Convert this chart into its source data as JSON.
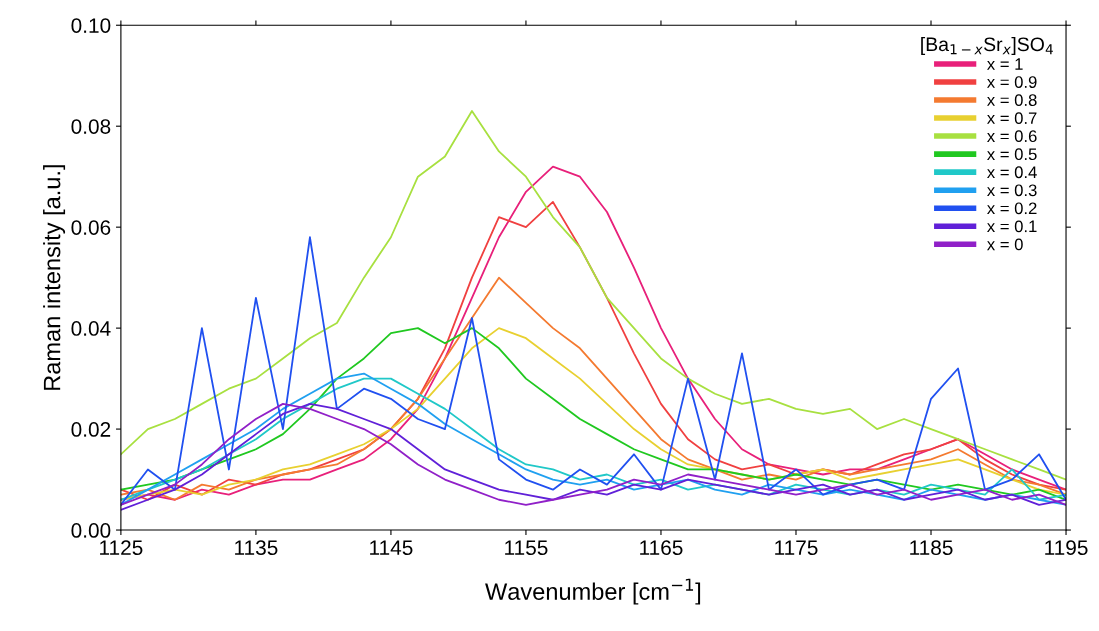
{
  "chart_data": {
    "type": "line",
    "xlabel": "Wavenumber [cm$^{−1}$]",
    "ylabel": "Raman intensity [a.u.]",
    "legend_title": "[Ba$_{1−x}$Sr$_{x}$]SO$_{4}$",
    "legend": "top right",
    "grid": false,
    "x": [
      1125,
      1127,
      1129,
      1131,
      1133,
      1135,
      1137,
      1139,
      1141,
      1143,
      1145,
      1147,
      1149,
      1151,
      1153,
      1155,
      1157,
      1159,
      1161,
      1163,
      1165,
      1167,
      1169,
      1171,
      1173,
      1175,
      1177,
      1179,
      1181,
      1183,
      1185,
      1187,
      1189,
      1191,
      1193,
      1195
    ],
    "xlim": [
      1125,
      1195
    ],
    "xticks": [
      1125,
      1135,
      1145,
      1155,
      1165,
      1175,
      1185,
      1195
    ],
    "ylim": [
      0,
      0.1
    ],
    "yticks": [
      {
        "value": 0,
        "label": "0.00"
      },
      {
        "value": 0.02,
        "label": "0.02"
      },
      {
        "value": 0.04,
        "label": "0.04"
      },
      {
        "value": 0.06,
        "label": "0.06"
      },
      {
        "value": 0.08,
        "label": "0.08"
      },
      {
        "value": 0.1,
        "label": "0.10"
      }
    ],
    "series": [
      {
        "name": "x = 1",
        "color": "#e8207a",
        "values": [
          0.006,
          0.007,
          0.006,
          0.008,
          0.007,
          0.009,
          0.01,
          0.01,
          0.012,
          0.014,
          0.018,
          0.024,
          0.034,
          0.046,
          0.058,
          0.067,
          0.072,
          0.07,
          0.063,
          0.052,
          0.04,
          0.03,
          0.022,
          0.016,
          0.013,
          0.012,
          0.011,
          0.012,
          0.012,
          0.014,
          0.016,
          0.018,
          0.015,
          0.012,
          0.01,
          0.008
        ]
      },
      {
        "name": "x = 0.9",
        "color": "#f04040",
        "values": [
          0.008,
          0.006,
          0.009,
          0.007,
          0.01,
          0.009,
          0.011,
          0.012,
          0.014,
          0.016,
          0.02,
          0.026,
          0.036,
          0.05,
          0.062,
          0.06,
          0.065,
          0.056,
          0.046,
          0.035,
          0.025,
          0.018,
          0.014,
          0.012,
          0.013,
          0.011,
          0.012,
          0.011,
          0.013,
          0.015,
          0.016,
          0.018,
          0.014,
          0.011,
          0.009,
          0.008
        ]
      },
      {
        "name": "x = 0.8",
        "color": "#f47a30",
        "values": [
          0.007,
          0.008,
          0.006,
          0.009,
          0.008,
          0.01,
          0.011,
          0.012,
          0.013,
          0.016,
          0.02,
          0.026,
          0.034,
          0.042,
          0.05,
          0.045,
          0.04,
          0.036,
          0.03,
          0.024,
          0.018,
          0.014,
          0.012,
          0.01,
          0.011,
          0.01,
          0.012,
          0.011,
          0.012,
          0.013,
          0.014,
          0.016,
          0.013,
          0.01,
          0.009,
          0.007
        ]
      },
      {
        "name": "x = 0.7",
        "color": "#e8d030",
        "values": [
          0.006,
          0.007,
          0.008,
          0.007,
          0.009,
          0.01,
          0.012,
          0.013,
          0.015,
          0.017,
          0.02,
          0.024,
          0.03,
          0.036,
          0.04,
          0.038,
          0.034,
          0.03,
          0.025,
          0.02,
          0.016,
          0.013,
          0.012,
          0.011,
          0.01,
          0.011,
          0.012,
          0.01,
          0.011,
          0.012,
          0.013,
          0.014,
          0.012,
          0.01,
          0.008,
          0.007
        ]
      },
      {
        "name": "x = 0.6",
        "color": "#a8e040",
        "values": [
          0.015,
          0.02,
          0.022,
          0.025,
          0.028,
          0.03,
          0.034,
          0.038,
          0.041,
          0.05,
          0.058,
          0.07,
          0.074,
          0.083,
          0.075,
          0.07,
          0.062,
          0.056,
          0.046,
          0.04,
          0.034,
          0.03,
          0.027,
          0.025,
          0.026,
          0.024,
          0.023,
          0.024,
          0.02,
          0.022,
          0.02,
          0.018,
          0.016,
          0.014,
          0.012,
          0.01
        ]
      },
      {
        "name": "x = 0.5",
        "color": "#20c820",
        "values": [
          0.008,
          0.009,
          0.01,
          0.012,
          0.014,
          0.016,
          0.019,
          0.024,
          0.03,
          0.034,
          0.039,
          0.04,
          0.037,
          0.04,
          0.036,
          0.03,
          0.026,
          0.022,
          0.019,
          0.016,
          0.014,
          0.012,
          0.012,
          0.011,
          0.01,
          0.011,
          0.01,
          0.009,
          0.01,
          0.009,
          0.008,
          0.009,
          0.008,
          0.007,
          0.008,
          0.006
        ]
      },
      {
        "name": "x = 0.4",
        "color": "#20c8c8",
        "values": [
          0.006,
          0.008,
          0.01,
          0.012,
          0.015,
          0.018,
          0.022,
          0.025,
          0.028,
          0.03,
          0.03,
          0.027,
          0.024,
          0.02,
          0.016,
          0.013,
          0.012,
          0.01,
          0.011,
          0.009,
          0.01,
          0.008,
          0.009,
          0.008,
          0.007,
          0.009,
          0.008,
          0.007,
          0.008,
          0.007,
          0.009,
          0.008,
          0.007,
          0.012,
          0.006,
          0.007
        ]
      },
      {
        "name": "x = 0.3",
        "color": "#20a0f0",
        "values": [
          0.005,
          0.008,
          0.011,
          0.014,
          0.017,
          0.02,
          0.024,
          0.027,
          0.03,
          0.031,
          0.028,
          0.025,
          0.021,
          0.018,
          0.015,
          0.012,
          0.01,
          0.009,
          0.01,
          0.008,
          0.009,
          0.01,
          0.008,
          0.007,
          0.009,
          0.008,
          0.007,
          0.008,
          0.007,
          0.006,
          0.008,
          0.007,
          0.006,
          0.007,
          0.006,
          0.005
        ]
      },
      {
        "name": "x = 0.2",
        "color": "#2050f0",
        "values": [
          0.005,
          0.012,
          0.008,
          0.04,
          0.012,
          0.046,
          0.02,
          0.058,
          0.024,
          0.028,
          0.026,
          0.022,
          0.02,
          0.042,
          0.014,
          0.01,
          0.008,
          0.012,
          0.009,
          0.015,
          0.008,
          0.03,
          0.01,
          0.035,
          0.008,
          0.012,
          0.007,
          0.009,
          0.01,
          0.008,
          0.026,
          0.032,
          0.008,
          0.01,
          0.015,
          0.006
        ]
      },
      {
        "name": "x = 0.1",
        "color": "#6020d8",
        "values": [
          0.004,
          0.006,
          0.008,
          0.011,
          0.015,
          0.019,
          0.023,
          0.025,
          0.024,
          0.022,
          0.02,
          0.016,
          0.012,
          0.01,
          0.008,
          0.007,
          0.006,
          0.008,
          0.007,
          0.009,
          0.008,
          0.01,
          0.009,
          0.008,
          0.007,
          0.008,
          0.009,
          0.007,
          0.008,
          0.006,
          0.007,
          0.008,
          0.006,
          0.007,
          0.005,
          0.006
        ]
      },
      {
        "name": "x = 0",
        "color": "#9020c8",
        "values": [
          0.005,
          0.007,
          0.009,
          0.013,
          0.018,
          0.022,
          0.025,
          0.024,
          0.022,
          0.02,
          0.017,
          0.013,
          0.01,
          0.008,
          0.006,
          0.005,
          0.006,
          0.007,
          0.008,
          0.01,
          0.009,
          0.011,
          0.01,
          0.009,
          0.008,
          0.007,
          0.008,
          0.009,
          0.007,
          0.008,
          0.006,
          0.007,
          0.008,
          0.006,
          0.007,
          0.005
        ]
      }
    ]
  }
}
